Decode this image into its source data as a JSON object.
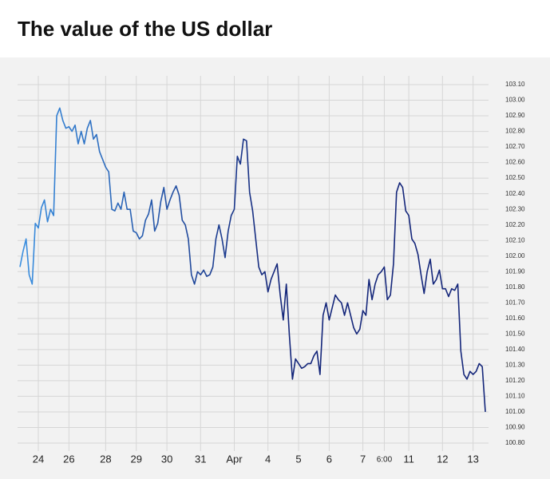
{
  "chart_data": {
    "type": "line",
    "title": "The value of the US dollar",
    "categories": [
      null,
      null,
      null,
      null,
      null,
      null,
      "24",
      null,
      null,
      null,
      null,
      null,
      null,
      null,
      null,
      null,
      "26",
      null,
      null,
      null,
      null,
      null,
      null,
      null,
      null,
      null,
      null,
      null,
      "28",
      null,
      null,
      null,
      null,
      null,
      null,
      null,
      null,
      null,
      "29",
      null,
      null,
      null,
      null,
      null,
      null,
      null,
      null,
      null,
      "30",
      null,
      null,
      null,
      null,
      null,
      null,
      null,
      null,
      null,
      null,
      "31",
      null,
      null,
      null,
      null,
      null,
      null,
      null,
      null,
      null,
      null,
      "Apr",
      null,
      null,
      null,
      null,
      null,
      null,
      null,
      null,
      null,
      null,
      "4",
      null,
      null,
      null,
      null,
      null,
      null,
      null,
      null,
      null,
      "5",
      null,
      null,
      null,
      null,
      null,
      null,
      null,
      null,
      null,
      "6",
      null,
      null,
      null,
      null,
      null,
      null,
      null,
      null,
      null,
      null,
      "7",
      null,
      null,
      null,
      null,
      null,
      null,
      "6:00",
      null,
      null,
      null,
      null,
      null,
      null,
      null,
      "11",
      null,
      null,
      null,
      null,
      null,
      null,
      null,
      null,
      null,
      null,
      "12",
      null,
      null,
      null,
      null,
      null,
      null,
      null,
      null,
      null,
      "13",
      null,
      null,
      null,
      null
    ],
    "values": [
      101.93,
      102.03,
      102.11,
      101.88,
      101.82,
      102.21,
      102.18,
      102.31,
      102.36,
      102.22,
      102.3,
      102.26,
      102.9,
      102.95,
      102.87,
      102.82,
      102.83,
      102.8,
      102.84,
      102.72,
      102.8,
      102.72,
      102.82,
      102.87,
      102.75,
      102.78,
      102.67,
      102.62,
      102.57,
      102.54,
      102.3,
      102.29,
      102.34,
      102.3,
      102.41,
      102.3,
      102.3,
      102.16,
      102.15,
      102.11,
      102.13,
      102.23,
      102.27,
      102.36,
      102.16,
      102.21,
      102.35,
      102.44,
      102.3,
      102.36,
      102.41,
      102.45,
      102.39,
      102.23,
      102.2,
      102.11,
      101.88,
      101.82,
      101.9,
      101.88,
      101.91,
      101.87,
      101.88,
      101.93,
      102.11,
      102.2,
      102.11,
      101.99,
      102.16,
      102.26,
      102.3,
      102.64,
      102.59,
      102.75,
      102.74,
      102.41,
      102.29,
      102.11,
      101.93,
      101.88,
      101.9,
      101.77,
      101.85,
      101.9,
      101.95,
      101.75,
      101.59,
      101.82,
      101.49,
      101.21,
      101.34,
      101.31,
      101.28,
      101.29,
      101.31,
      101.31,
      101.36,
      101.39,
      101.24,
      101.62,
      101.7,
      101.59,
      101.67,
      101.75,
      101.72,
      101.7,
      101.62,
      101.7,
      101.62,
      101.54,
      101.5,
      101.53,
      101.65,
      101.62,
      101.85,
      101.72,
      101.82,
      101.88,
      101.9,
      101.93,
      101.72,
      101.75,
      101.95,
      102.41,
      102.47,
      102.44,
      102.29,
      102.26,
      102.11,
      102.08,
      102.01,
      101.88,
      101.76,
      101.9,
      101.98,
      101.82,
      101.85,
      101.91,
      101.79,
      101.79,
      101.74,
      101.79,
      101.78,
      101.82,
      101.39,
      101.24,
      101.21,
      101.26,
      101.24,
      101.26,
      101.31,
      101.29,
      101.0
    ],
    "colors": [
      "#3a8fe0",
      "#14267a"
    ],
    "ylim": [
      100.8,
      103.1
    ],
    "yticks": [
      {
        "value": 100.8,
        "label": "100.80"
      },
      {
        "value": 100.9,
        "label": "100.90"
      },
      {
        "value": 101.0,
        "label": "101.00"
      },
      {
        "value": 101.1,
        "label": "101.10"
      },
      {
        "value": 101.2,
        "label": "101.20"
      },
      {
        "value": 101.3,
        "label": "101.30"
      },
      {
        "value": 101.4,
        "label": "101.40"
      },
      {
        "value": 101.5,
        "label": "101.50"
      },
      {
        "value": 101.6,
        "label": "101.60"
      },
      {
        "value": 101.7,
        "label": "101.70"
      },
      {
        "value": 101.8,
        "label": "101.80"
      },
      {
        "value": 101.9,
        "label": "101.90"
      },
      {
        "value": 102.0,
        "label": "102.00"
      },
      {
        "value": 102.1,
        "label": "102.10"
      },
      {
        "value": 102.2,
        "label": "102.20"
      },
      {
        "value": 102.3,
        "label": "102.30"
      },
      {
        "value": 102.4,
        "label": "102.40"
      },
      {
        "value": 102.5,
        "label": "102.50"
      },
      {
        "value": 102.6,
        "label": "102.60"
      },
      {
        "value": 102.7,
        "label": "102.70"
      },
      {
        "value": 102.8,
        "label": "102.80"
      },
      {
        "value": 102.9,
        "label": "102.90"
      },
      {
        "value": 103.0,
        "label": "103.00"
      },
      {
        "value": 103.1,
        "label": "103.10"
      }
    ],
    "grid": true
  }
}
